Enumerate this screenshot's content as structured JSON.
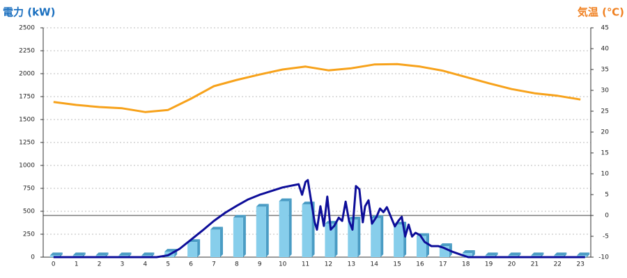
{
  "chart_data": {
    "type": "bar",
    "y_title": "電力 (kW)",
    "y2_title": "気温 (℃)",
    "categories": [
      "0",
      "1",
      "2",
      "3",
      "4",
      "5",
      "6",
      "7",
      "8",
      "9",
      "10",
      "11",
      "12",
      "13",
      "14",
      "15",
      "16",
      "17",
      "18",
      "19",
      "20",
      "21",
      "22",
      "23"
    ],
    "xlim": [
      -0.45,
      23.45
    ],
    "ylim": [
      0,
      2500
    ],
    "yticks": [
      0,
      250,
      500,
      750,
      1000,
      1250,
      1500,
      1750,
      2000,
      2250,
      2500
    ],
    "y2lim": [
      -10,
      45
    ],
    "y2ticks": [
      -10,
      -5,
      0,
      5,
      10,
      15,
      20,
      25,
      30,
      35,
      40,
      45
    ],
    "grid": true,
    "y2_zero_line": true,
    "series": [
      {
        "type": "bar",
        "color": "#87ceeb",
        "side_color": "#4a9cc4",
        "values": [
          20,
          20,
          20,
          20,
          20,
          60,
          165,
          300,
          430,
          550,
          610,
          575,
          365,
          410,
          425,
          355,
          230,
          120,
          45,
          20,
          20,
          20,
          20,
          20
        ]
      },
      {
        "type": "line",
        "color": "#0d0d99",
        "x": [
          0,
          4.5,
          5,
          5.5,
          6,
          6.5,
          7,
          7.5,
          8,
          8.5,
          9,
          9.5,
          10,
          10.3,
          10.5,
          10.7,
          10.85,
          11,
          11.1,
          11.25,
          11.4,
          11.5,
          11.65,
          11.8,
          11.95,
          12.1,
          12.25,
          12.45,
          12.6,
          12.75,
          12.9,
          13.05,
          13.2,
          13.35,
          13.5,
          13.6,
          13.75,
          13.9,
          14.1,
          14.25,
          14.4,
          14.55,
          14.7,
          14.9,
          15.05,
          15.2,
          15.35,
          15.5,
          15.65,
          15.8,
          16,
          16.2,
          16.5,
          16.8,
          17,
          17.4,
          17.8,
          18.1,
          23.2
        ],
        "values": [
          0,
          0,
          20,
          90,
          190,
          290,
          395,
          485,
          560,
          630,
          680,
          720,
          760,
          775,
          785,
          795,
          680,
          820,
          840,
          605,
          380,
          300,
          555,
          340,
          660,
          300,
          340,
          430,
          395,
          605,
          395,
          300,
          775,
          740,
          380,
          555,
          620,
          365,
          440,
          530,
          490,
          545,
          455,
          335,
          395,
          440,
          225,
          355,
          225,
          265,
          240,
          165,
          120,
          120,
          105,
          60,
          25,
          0,
          0
        ]
      },
      {
        "type": "line",
        "axis": "y2",
        "color": "#f7a21b",
        "values": [
          27.2,
          26.5,
          26,
          25.7,
          24.8,
          25.3,
          28,
          31,
          32.5,
          33.8,
          35,
          35.7,
          34.8,
          35.3,
          36.2,
          36.3,
          35.7,
          34.7,
          33.2,
          31.7,
          30.3,
          29.3,
          28.7,
          27.8
        ]
      }
    ]
  }
}
